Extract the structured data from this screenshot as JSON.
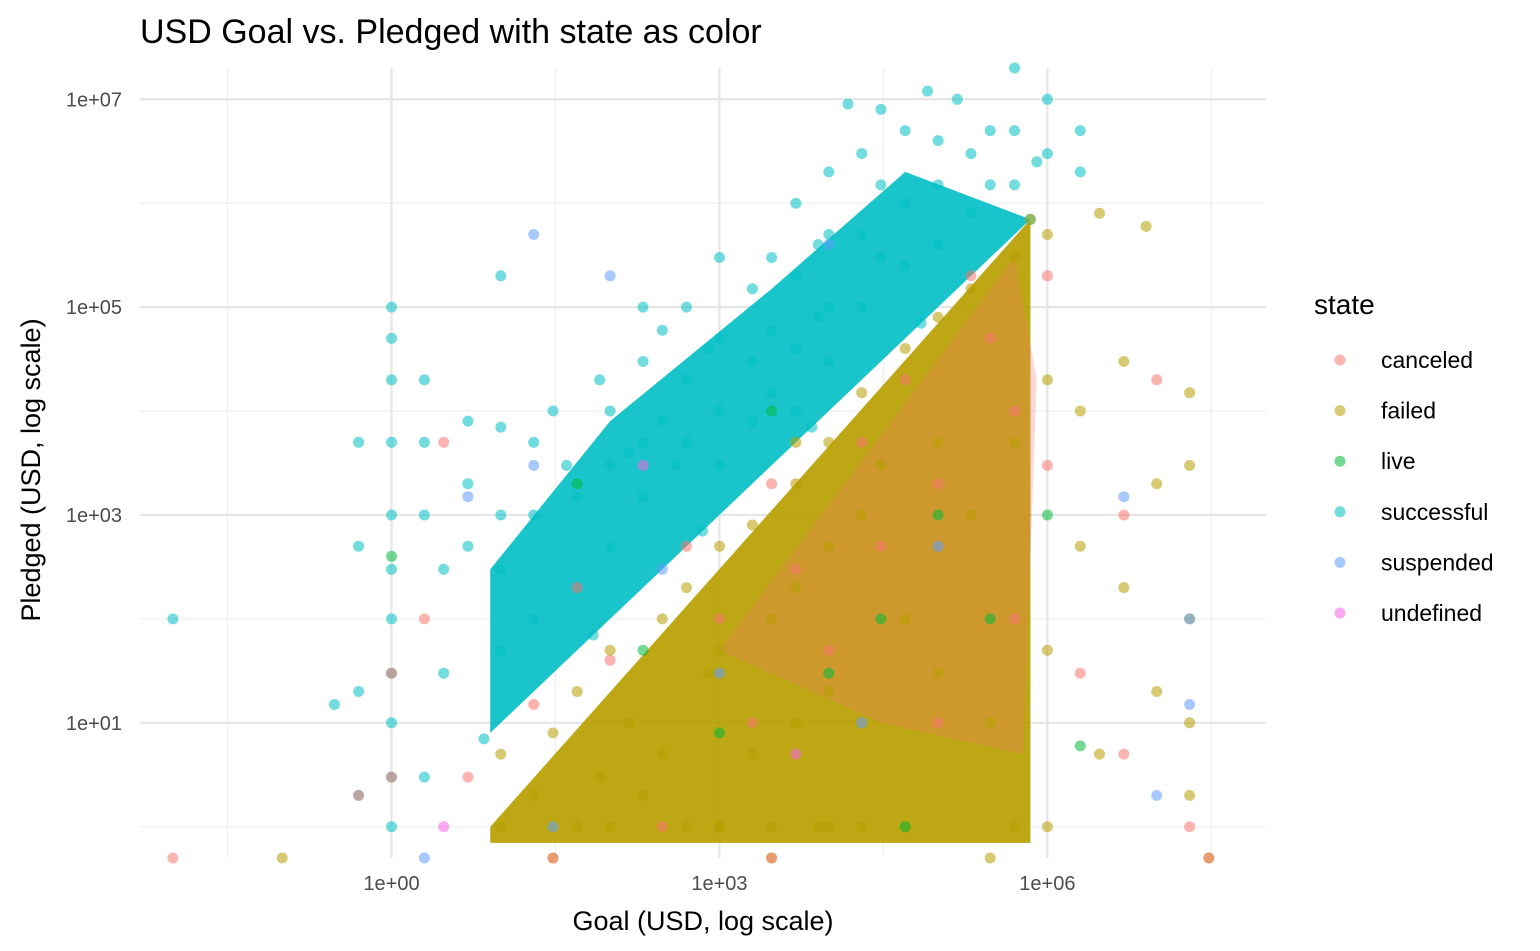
{
  "chart_data": {
    "type": "scatter",
    "title": "USD Goal vs. Pledged with state as color",
    "xlabel": "Goal (USD, log scale)",
    "ylabel": "Pledged (USD, log scale)",
    "x_scale": "log10",
    "y_scale": "log10",
    "xlim": [
      0.005,
      100000000
    ],
    "ylim": [
      0.5,
      20000000
    ],
    "x_ticks": [
      {
        "value": 1,
        "label": "1e+00"
      },
      {
        "value": 1000,
        "label": "1e+03"
      },
      {
        "value": 1000000,
        "label": "1e+06"
      }
    ],
    "y_ticks": [
      {
        "value": 10,
        "label": "1e+01"
      },
      {
        "value": 1000,
        "label": "1e+03"
      },
      {
        "value": 100000,
        "label": "1e+05"
      },
      {
        "value": 10000000,
        "label": "1e+07"
      }
    ],
    "grid": true,
    "legend": {
      "title": "state",
      "position": "right",
      "entries": [
        {
          "name": "canceled",
          "color": "#F8766D"
        },
        {
          "name": "failed",
          "color": "#B79F00"
        },
        {
          "name": "live",
          "color": "#00BA38"
        },
        {
          "name": "successful",
          "color": "#00BFC4"
        },
        {
          "name": "suspended",
          "color": "#619CFF"
        },
        {
          "name": "undefined",
          "color": "#F564E3"
        }
      ]
    },
    "series": [
      {
        "name": "successful",
        "color": "#00BFC4",
        "points": [
          [
            0.01,
            100
          ],
          [
            1,
            100000
          ],
          [
            1,
            50000
          ],
          [
            1,
            20000
          ],
          [
            1,
            5000
          ],
          [
            1,
            1000
          ],
          [
            1,
            300
          ],
          [
            1,
            100
          ],
          [
            1,
            30
          ],
          [
            1,
            10
          ],
          [
            1,
            3
          ],
          [
            1,
            1
          ],
          [
            0.5,
            5000
          ],
          [
            0.5,
            500
          ],
          [
            0.5,
            20
          ],
          [
            0.3,
            15
          ],
          [
            0.5,
            2
          ],
          [
            2,
            20000
          ],
          [
            2,
            5000
          ],
          [
            2,
            1000
          ],
          [
            3,
            300
          ],
          [
            3,
            30
          ],
          [
            2,
            3
          ],
          [
            5,
            8000
          ],
          [
            5,
            2000
          ],
          [
            5,
            500
          ],
          [
            10,
            200000
          ],
          [
            10,
            7000
          ],
          [
            10,
            1000
          ],
          [
            10,
            300
          ],
          [
            10,
            50
          ],
          [
            20,
            5000
          ],
          [
            20,
            1000
          ],
          [
            20,
            100
          ],
          [
            30,
            10000
          ],
          [
            40,
            3000
          ],
          [
            50,
            1500
          ],
          [
            50,
            200
          ],
          [
            80,
            20000
          ],
          [
            100,
            10000
          ],
          [
            100,
            3000
          ],
          [
            100,
            500
          ],
          [
            150,
            4000
          ],
          [
            200,
            100000
          ],
          [
            200,
            30000
          ],
          [
            200,
            5000
          ],
          [
            200,
            1500
          ],
          [
            300,
            60000
          ],
          [
            300,
            8000
          ],
          [
            400,
            3000
          ],
          [
            500,
            100000
          ],
          [
            500,
            20000
          ],
          [
            500,
            5000
          ],
          [
            800,
            40000
          ],
          [
            1000,
            300000
          ],
          [
            1000,
            50000
          ],
          [
            1000,
            10000
          ],
          [
            1000,
            3000
          ],
          [
            2000,
            150000
          ],
          [
            2000,
            30000
          ],
          [
            2000,
            8000
          ],
          [
            3000,
            300000
          ],
          [
            3000,
            60000
          ],
          [
            3000,
            15000
          ],
          [
            5000,
            1000000
          ],
          [
            5000,
            200000
          ],
          [
            5000,
            40000
          ],
          [
            5000,
            10000
          ],
          [
            8000,
            400000
          ],
          [
            8000,
            80000
          ],
          [
            10000,
            2000000
          ],
          [
            10000,
            500000
          ],
          [
            10000,
            100000
          ],
          [
            10000,
            30000
          ],
          [
            15000,
            9000000
          ],
          [
            20000,
            3000000
          ],
          [
            20000,
            500000
          ],
          [
            20000,
            100000
          ],
          [
            30000,
            8000000
          ],
          [
            30000,
            1500000
          ],
          [
            30000,
            300000
          ],
          [
            50000,
            5000000
          ],
          [
            50000,
            1000000
          ],
          [
            50000,
            250000
          ],
          [
            80000,
            12000000
          ],
          [
            100000,
            4000000
          ],
          [
            100000,
            1500000
          ],
          [
            100000,
            400000
          ],
          [
            150000,
            10000000
          ],
          [
            200000,
            3000000
          ],
          [
            200000,
            800000
          ],
          [
            300000,
            5000000
          ],
          [
            300000,
            1500000
          ],
          [
            500000,
            20000000
          ],
          [
            500000,
            5000000
          ],
          [
            500000,
            1500000
          ],
          [
            800000,
            2500000
          ],
          [
            1000000,
            10000000
          ],
          [
            1000000,
            3000000
          ],
          [
            2000000,
            5000000
          ],
          [
            2000000,
            2000000
          ],
          [
            700000,
            700000
          ],
          [
            70000,
            70000
          ],
          [
            7000,
            7000
          ],
          [
            700,
            700
          ],
          [
            70,
            70
          ],
          [
            7,
            7
          ]
        ]
      },
      {
        "name": "failed",
        "color": "#B79F00",
        "points": [
          [
            10,
            1
          ],
          [
            10,
            5
          ],
          [
            20,
            2
          ],
          [
            30,
            8
          ],
          [
            50,
            1
          ],
          [
            50,
            20
          ],
          [
            80,
            3
          ],
          [
            100,
            1
          ],
          [
            100,
            50
          ],
          [
            150,
            10
          ],
          [
            200,
            2
          ],
          [
            300,
            100
          ],
          [
            300,
            5
          ],
          [
            500,
            1
          ],
          [
            500,
            200
          ],
          [
            800,
            30
          ],
          [
            1000,
            1
          ],
          [
            1000,
            500
          ],
          [
            1000,
            50
          ],
          [
            2000,
            5
          ],
          [
            2000,
            800
          ],
          [
            3000,
            100
          ],
          [
            3000,
            1
          ],
          [
            5000,
            2000
          ],
          [
            5000,
            200
          ],
          [
            5000,
            10
          ],
          [
            8000,
            1
          ],
          [
            10000,
            5000
          ],
          [
            10000,
            500
          ],
          [
            10000,
            20
          ],
          [
            20000,
            15000
          ],
          [
            20000,
            1000
          ],
          [
            20000,
            1
          ],
          [
            30000,
            3000
          ],
          [
            50000,
            40000
          ],
          [
            50000,
            100
          ],
          [
            50000,
            1
          ],
          [
            100000,
            80000
          ],
          [
            100000,
            5000
          ],
          [
            100000,
            30
          ],
          [
            200000,
            150000
          ],
          [
            200000,
            1000
          ],
          [
            300000,
            10
          ],
          [
            500000,
            300000
          ],
          [
            500000,
            5000
          ],
          [
            500000,
            1
          ],
          [
            1000000,
            500000
          ],
          [
            1000000,
            20000
          ],
          [
            1000000,
            50
          ],
          [
            2000000,
            10000
          ],
          [
            2000000,
            500
          ],
          [
            3000000,
            800000
          ],
          [
            5000000,
            30000
          ],
          [
            5000000,
            200
          ],
          [
            8000000,
            600000
          ],
          [
            10000000,
            2000
          ],
          [
            10000000,
            20
          ],
          [
            20000000,
            15000
          ],
          [
            20000000,
            3000
          ],
          [
            20000000,
            100
          ],
          [
            20000000,
            10
          ],
          [
            20000000,
            2
          ],
          [
            3000000,
            5
          ],
          [
            1000000,
            1
          ],
          [
            10000,
            1
          ],
          [
            1000,
            1
          ],
          [
            5000,
            5000
          ],
          [
            700000,
            700000
          ],
          [
            0.1,
            0.5
          ],
          [
            30,
            0.5
          ],
          [
            3000,
            0.5
          ],
          [
            300000,
            0.5
          ],
          [
            30000000,
            0.5
          ]
        ]
      },
      {
        "name": "canceled",
        "color": "#F8766D",
        "points": [
          [
            0.01,
            0.5
          ],
          [
            1,
            3
          ],
          [
            0.5,
            2
          ],
          [
            1,
            30
          ],
          [
            2,
            100
          ],
          [
            3,
            5000
          ],
          [
            5,
            3
          ],
          [
            20,
            15
          ],
          [
            50,
            200
          ],
          [
            100,
            40
          ],
          [
            300,
            1
          ],
          [
            500,
            500
          ],
          [
            1000,
            100
          ],
          [
            2000,
            10
          ],
          [
            3000,
            2000
          ],
          [
            5000,
            300
          ],
          [
            10000,
            50
          ],
          [
            20000,
            5000
          ],
          [
            30000,
            500
          ],
          [
            50000,
            20000
          ],
          [
            100000,
            2000
          ],
          [
            100000,
            10
          ],
          [
            200000,
            200000
          ],
          [
            300000,
            50000
          ],
          [
            500000,
            10000
          ],
          [
            500000,
            100
          ],
          [
            1000000,
            200000
          ],
          [
            1000000,
            3000
          ],
          [
            2000000,
            30
          ],
          [
            5000000,
            5
          ],
          [
            5000000,
            1000
          ],
          [
            10000000,
            20000
          ],
          [
            20000000,
            1
          ],
          [
            30000000,
            0.5
          ],
          [
            3000,
            0.5
          ],
          [
            30,
            0.5
          ]
        ]
      },
      {
        "name": "live",
        "color": "#00BA38",
        "points": [
          [
            1,
            400
          ],
          [
            50,
            2000
          ],
          [
            200,
            50
          ],
          [
            1000,
            8
          ],
          [
            3000,
            10000
          ],
          [
            10000,
            30
          ],
          [
            30000,
            100
          ],
          [
            50000,
            1
          ],
          [
            100000,
            1000
          ],
          [
            300000,
            100
          ],
          [
            1000000,
            1000
          ],
          [
            2000000,
            6
          ]
        ]
      },
      {
        "name": "suspended",
        "color": "#619CFF",
        "points": [
          [
            2,
            0.5
          ],
          [
            5,
            1500
          ],
          [
            20,
            3000
          ],
          [
            30,
            1
          ],
          [
            100,
            200000
          ],
          [
            300,
            300
          ],
          [
            1000,
            30
          ],
          [
            10000,
            400000
          ],
          [
            20000,
            10
          ],
          [
            100000,
            500
          ],
          [
            5000000,
            1500
          ],
          [
            20000000,
            100
          ],
          [
            20000000,
            15
          ],
          [
            10000000,
            2
          ],
          [
            20,
            500000
          ]
        ]
      },
      {
        "name": "undefined",
        "color": "#F564E3",
        "points": [
          [
            3,
            1
          ],
          [
            200,
            3000
          ],
          [
            5000,
            5
          ]
        ]
      }
    ]
  }
}
